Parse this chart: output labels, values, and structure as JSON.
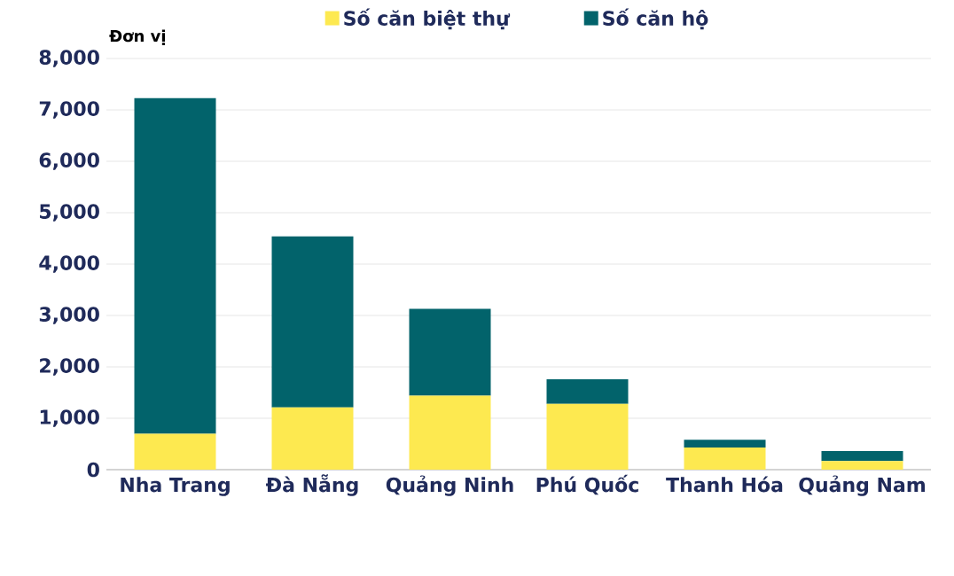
{
  "chart_data": {
    "type": "bar",
    "stacked": true,
    "ylabel": "Đơn vị",
    "categories": [
      "Nha Trang",
      "Đà Nẵng",
      "Quảng Ninh",
      "Phú Quốc",
      "Thanh Hóa",
      "Quảng Nam"
    ],
    "series": [
      {
        "name": "Số căn biệt thự",
        "color": "#fde950",
        "values": [
          700,
          1210,
          1440,
          1280,
          430,
          170
        ]
      },
      {
        "name": "Số căn hộ",
        "color": "#02636b",
        "values": [
          6530,
          3330,
          1690,
          480,
          150,
          190
        ]
      }
    ],
    "ylim": [
      0,
      8000
    ],
    "yticks": [
      {
        "value": 0,
        "label": "0"
      },
      {
        "value": 1000,
        "label": "1,000"
      },
      {
        "value": 2000,
        "label": "2,000"
      },
      {
        "value": 3000,
        "label": "3,000"
      },
      {
        "value": 4000,
        "label": "4,000"
      },
      {
        "value": 5000,
        "label": "5,000"
      },
      {
        "value": 6000,
        "label": "6,000"
      },
      {
        "value": 7000,
        "label": "7,000"
      },
      {
        "value": 8000,
        "label": "8,000"
      }
    ],
    "grid": "y",
    "legend": "top"
  }
}
